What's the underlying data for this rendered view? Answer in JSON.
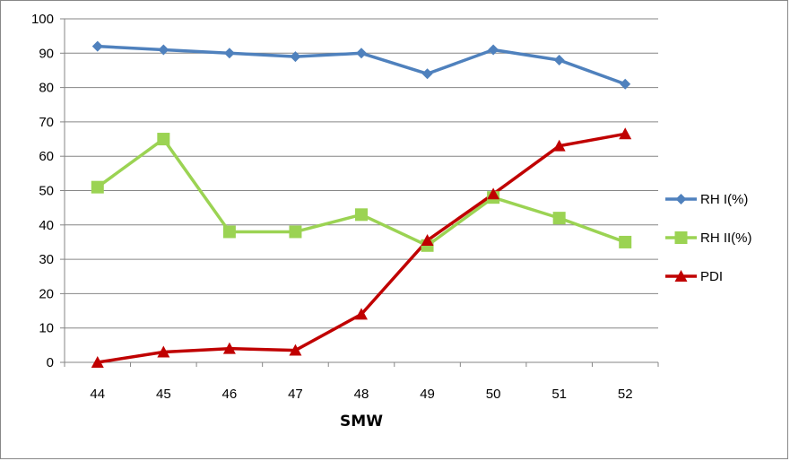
{
  "chart_data": {
    "type": "line",
    "xlabel": "SMW",
    "ylabel": "",
    "categories": [
      "44",
      "45",
      "46",
      "47",
      "48",
      "49",
      "50",
      "51",
      "52"
    ],
    "ylim": [
      0,
      100
    ],
    "yticks": [
      0,
      10,
      20,
      30,
      40,
      50,
      60,
      70,
      80,
      90,
      100
    ],
    "grid": "horizontal",
    "legend_position": "right",
    "series": [
      {
        "name": "RH I(%)",
        "color": "#4F81BD",
        "marker": "diamond",
        "values": [
          92,
          91,
          90,
          89,
          90,
          84,
          91,
          88,
          81
        ]
      },
      {
        "name": "RH II(%)",
        "color": "#9BD353",
        "marker": "square",
        "values": [
          51,
          65,
          38,
          38,
          43,
          34,
          48,
          42,
          35
        ]
      },
      {
        "name": "PDI",
        "color": "#C00000",
        "marker": "triangle",
        "values": [
          0,
          3,
          4,
          3.5,
          14,
          35.5,
          49,
          63,
          66.5
        ]
      }
    ]
  }
}
